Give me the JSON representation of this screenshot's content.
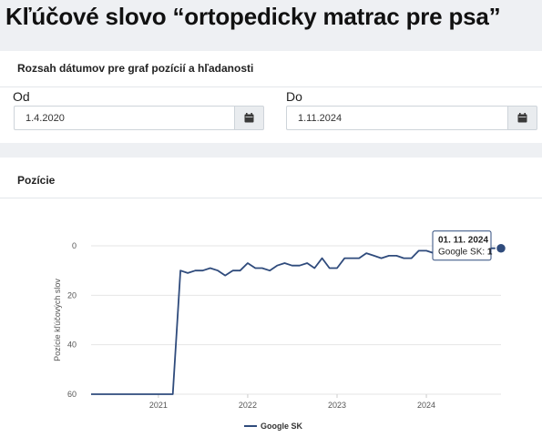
{
  "page": {
    "title": "Kľúčové slovo “ortopedicky matrac pre psa”"
  },
  "date_range": {
    "title": "Rozsah dátumov pre graf pozícií a hľadanosti",
    "from": {
      "label": "Od",
      "value": "1.4.2020",
      "button_icon": "calendar-icon"
    },
    "to": {
      "label": "Do",
      "value": "1.11.2024",
      "button_icon": "calendar-icon"
    }
  },
  "positions_card": {
    "title": "Pozície"
  },
  "chart_data": {
    "type": "line",
    "ylabel": "Pozície kľúčových slov",
    "y_reversed": true,
    "ylim": [
      0,
      60
    ],
    "yticks": [
      0,
      20,
      40,
      60
    ],
    "xlim": [
      "2020-04-01",
      "2024-11-01"
    ],
    "xticks": [
      "2021",
      "2022",
      "2023",
      "2024"
    ],
    "grid": true,
    "legend_position": "bottom",
    "colors": {
      "line": "#2f4b7c"
    },
    "series": [
      {
        "name": "Google SK",
        "points": [
          [
            "2020-04-01",
            60
          ],
          [
            "2020-06-01",
            60
          ],
          [
            "2020-08-01",
            60
          ],
          [
            "2020-10-01",
            60
          ],
          [
            "2020-12-01",
            60
          ],
          [
            "2021-02-01",
            60
          ],
          [
            "2021-03-01",
            60
          ],
          [
            "2021-04-01",
            10
          ],
          [
            "2021-05-01",
            11
          ],
          [
            "2021-06-01",
            10
          ],
          [
            "2021-07-01",
            10
          ],
          [
            "2021-08-01",
            9
          ],
          [
            "2021-09-01",
            10
          ],
          [
            "2021-10-01",
            12
          ],
          [
            "2021-11-01",
            10
          ],
          [
            "2021-12-01",
            10
          ],
          [
            "2022-01-01",
            7
          ],
          [
            "2022-02-01",
            9
          ],
          [
            "2022-03-01",
            9
          ],
          [
            "2022-04-01",
            10
          ],
          [
            "2022-05-01",
            8
          ],
          [
            "2022-06-01",
            7
          ],
          [
            "2022-07-01",
            8
          ],
          [
            "2022-08-01",
            8
          ],
          [
            "2022-09-01",
            7
          ],
          [
            "2022-10-01",
            9
          ],
          [
            "2022-11-01",
            5
          ],
          [
            "2022-12-01",
            9
          ],
          [
            "2023-01-01",
            9
          ],
          [
            "2023-02-01",
            5
          ],
          [
            "2023-03-01",
            5
          ],
          [
            "2023-04-01",
            5
          ],
          [
            "2023-05-01",
            3
          ],
          [
            "2023-06-01",
            4
          ],
          [
            "2023-07-01",
            5
          ],
          [
            "2023-08-01",
            4
          ],
          [
            "2023-09-01",
            4
          ],
          [
            "2023-10-01",
            5
          ],
          [
            "2023-11-01",
            5
          ],
          [
            "2023-12-01",
            2
          ],
          [
            "2024-01-01",
            2
          ],
          [
            "2024-02-01",
            3
          ],
          [
            "2024-03-01",
            3
          ],
          [
            "2024-04-01",
            2
          ],
          [
            "2024-05-01",
            2
          ],
          [
            "2024-06-01",
            3
          ],
          [
            "2024-07-01",
            2
          ],
          [
            "2024-08-01",
            2
          ],
          [
            "2024-09-01",
            1
          ],
          [
            "2024-10-01",
            1
          ],
          [
            "2024-11-01",
            1
          ]
        ]
      }
    ],
    "tooltip": {
      "date": "01. 11. 2024",
      "series": "Google SK",
      "value": "1"
    }
  }
}
